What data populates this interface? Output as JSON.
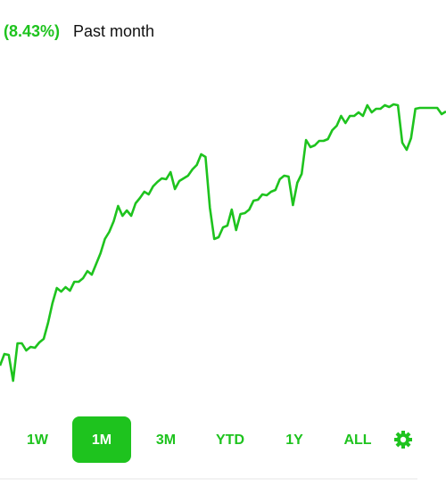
{
  "header": {
    "change": "(8.43%)",
    "period": "Past month"
  },
  "chart_data": {
    "type": "line",
    "color": "#1ec31e",
    "values": [
      40,
      53,
      52,
      23,
      65,
      65,
      57,
      61,
      60,
      66,
      70,
      88,
      110,
      127,
      123,
      128,
      124,
      134,
      134,
      138,
      146,
      142,
      154,
      166,
      182,
      190,
      202,
      219,
      208,
      214,
      208,
      222,
      228,
      235,
      232,
      241,
      246,
      250,
      249,
      257,
      238,
      247,
      250,
      253,
      260,
      265,
      277,
      274,
      217,
      182,
      184,
      195,
      197,
      215,
      192,
      210,
      211,
      215,
      225,
      226,
      232,
      231,
      235,
      237,
      249,
      253,
      252,
      220,
      245,
      255,
      293,
      285,
      287,
      292,
      292,
      294,
      304,
      309,
      320,
      312,
      320,
      320,
      324,
      320,
      332,
      324,
      328,
      328,
      332,
      330,
      333,
      332,
      290,
      282,
      295,
      328,
      329,
      329,
      329,
      329,
      329,
      322,
      325
    ]
  },
  "ranges": {
    "buttons": [
      "1W",
      "1M",
      "3M",
      "YTD",
      "1Y",
      "ALL"
    ],
    "selected": 1
  }
}
